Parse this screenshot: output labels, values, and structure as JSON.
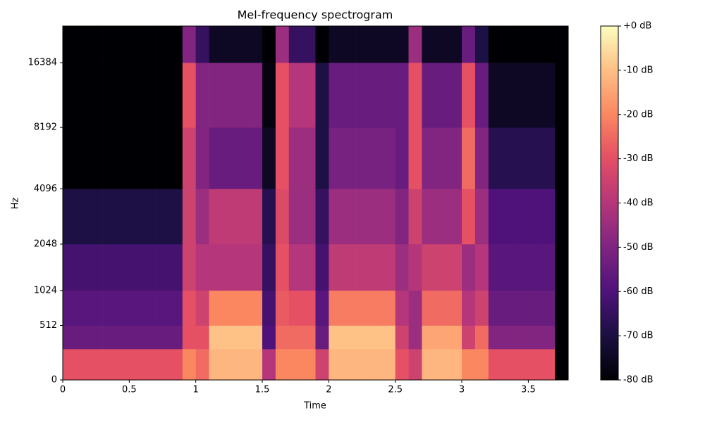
{
  "chart_data": {
    "type": "heatmap",
    "title": "Mel-frequency spectrogram",
    "xlabel": "Time",
    "ylabel": "Hz",
    "yscale": "mel",
    "colormap": "magma",
    "xlim": [
      0,
      3.8
    ],
    "ylim": [
      0,
      24000
    ],
    "xticks": [
      0,
      0.5,
      1,
      1.5,
      2,
      2.5,
      3,
      3.5
    ],
    "yticks": [
      0,
      512,
      1024,
      2048,
      4096,
      8192,
      16384
    ],
    "bins": [
      0,
      0.1,
      0.2,
      0.3,
      0.4,
      0.5,
      0.6,
      0.7,
      0.8,
      0.9,
      1.0,
      1.1,
      1.2,
      1.3,
      1.4,
      1.5,
      1.6,
      1.7,
      1.8,
      1.9,
      2.0,
      2.1,
      2.2,
      2.3,
      2.4,
      2.5,
      2.6,
      2.7,
      2.8,
      2.9,
      3.0,
      3.1,
      3.2,
      3.3,
      3.4,
      3.5,
      3.6,
      3.7,
      3.8
    ],
    "ybins": [
      0,
      256,
      512,
      1024,
      2048,
      4096,
      8192,
      16384,
      24000
    ],
    "z": [
      [
        -30,
        -30,
        -30,
        -30,
        -30,
        -30,
        -30,
        -30,
        -30,
        -20,
        -25,
        -12,
        -12,
        -12,
        -12,
        -40,
        -20,
        -20,
        -20,
        -35,
        -12,
        -12,
        -12,
        -12,
        -12,
        -30,
        -35,
        -12,
        -12,
        -12,
        -20,
        -20,
        -30,
        -30,
        -30,
        -30,
        -30,
        -80
      ],
      [
        -55,
        -55,
        -55,
        -55,
        -55,
        -55,
        -55,
        -55,
        -55,
        -30,
        -30,
        -10,
        -10,
        -10,
        -10,
        -60,
        -25,
        -25,
        -25,
        -55,
        -10,
        -10,
        -10,
        -10,
        -10,
        -35,
        -45,
        -15,
        -15,
        -15,
        -35,
        -25,
        -50,
        -50,
        -50,
        -50,
        -50,
        -80
      ],
      [
        -58,
        -58,
        -58,
        -58,
        -58,
        -58,
        -58,
        -58,
        -58,
        -30,
        -35,
        -20,
        -20,
        -20,
        -20,
        -62,
        -28,
        -30,
        -30,
        -58,
        -22,
        -22,
        -22,
        -22,
        -22,
        -40,
        -45,
        -25,
        -25,
        -25,
        -40,
        -35,
        -55,
        -55,
        -55,
        -55,
        -55,
        -80
      ],
      [
        -62,
        -62,
        -62,
        -62,
        -62,
        -62,
        -62,
        -62,
        -62,
        -35,
        -40,
        -40,
        -40,
        -40,
        -40,
        -65,
        -30,
        -40,
        -40,
        -62,
        -38,
        -38,
        -38,
        -38,
        -38,
        -45,
        -40,
        -35,
        -35,
        -35,
        -45,
        -40,
        -58,
        -58,
        -58,
        -58,
        -58,
        -80
      ],
      [
        -70,
        -70,
        -70,
        -70,
        -70,
        -70,
        -70,
        -70,
        -70,
        -35,
        -45,
        -38,
        -38,
        -38,
        -38,
        -68,
        -32,
        -45,
        -45,
        -65,
        -45,
        -45,
        -45,
        -45,
        -45,
        -50,
        -35,
        -45,
        -45,
        -45,
        -30,
        -45,
        -60,
        -60,
        -60,
        -60,
        -60,
        -80
      ],
      [
        -80,
        -80,
        -80,
        -80,
        -80,
        -80,
        -80,
        -80,
        -80,
        -35,
        -50,
        -55,
        -55,
        -55,
        -55,
        -75,
        -30,
        -45,
        -45,
        -70,
        -52,
        -52,
        -52,
        -52,
        -52,
        -55,
        -30,
        -50,
        -50,
        -50,
        -25,
        -50,
        -68,
        -68,
        -68,
        -68,
        -68,
        -80
      ],
      [
        -80,
        -80,
        -80,
        -80,
        -80,
        -80,
        -80,
        -80,
        -80,
        -30,
        -50,
        -50,
        -50,
        -50,
        -50,
        -78,
        -30,
        -40,
        -40,
        -70,
        -55,
        -55,
        -55,
        -55,
        -55,
        -55,
        -30,
        -55,
        -55,
        -55,
        -30,
        -55,
        -75,
        -75,
        -75,
        -75,
        -75,
        -80
      ],
      [
        -80,
        -80,
        -80,
        -80,
        -80,
        -80,
        -80,
        -80,
        -80,
        -50,
        -65,
        -75,
        -75,
        -75,
        -75,
        -80,
        -45,
        -65,
        -65,
        -80,
        -75,
        -75,
        -75,
        -75,
        -75,
        -75,
        -45,
        -75,
        -75,
        -75,
        -55,
        -70,
        -80,
        -80,
        -80,
        -80,
        -80,
        -80
      ]
    ],
    "clim": [
      -80,
      0
    ],
    "cticks": [
      {
        "value": 0,
        "label": "+0 dB"
      },
      {
        "value": -10,
        "label": "-10 dB"
      },
      {
        "value": -20,
        "label": "-20 dB"
      },
      {
        "value": -30,
        "label": "-30 dB"
      },
      {
        "value": -40,
        "label": "-40 dB"
      },
      {
        "value": -50,
        "label": "-50 dB"
      },
      {
        "value": -60,
        "label": "-60 dB"
      },
      {
        "value": -70,
        "label": "-70 dB"
      },
      {
        "value": -80,
        "label": "-80 dB"
      }
    ]
  }
}
